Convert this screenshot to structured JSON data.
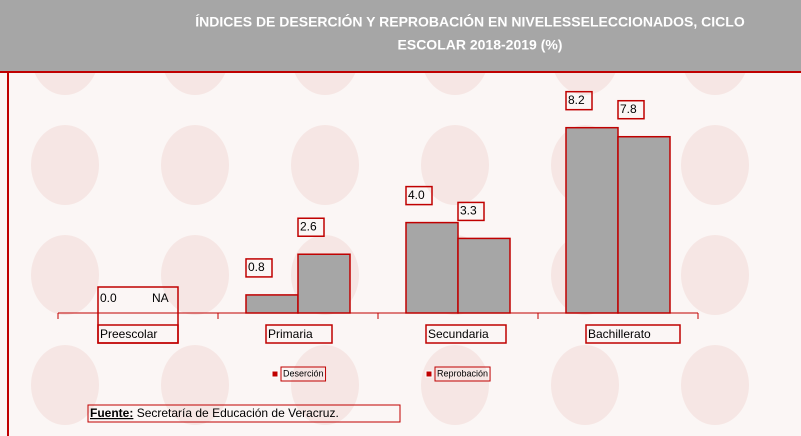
{
  "chart_data": {
    "type": "bar",
    "title": [
      "ÍNDICES DE DESERCIÓN Y REPROBACIÓN EN NIVELESSELECCIONADOS, CICLO",
      "ESCOLAR 2018-2019 (%)"
    ],
    "categories": [
      "Preescolar",
      "Primaria",
      "Secundaria",
      "Bachillerato"
    ],
    "series": [
      {
        "name": "Deserción",
        "color": "#a6a6a6",
        "values": [
          0.0,
          0.8,
          4.0,
          8.2
        ],
        "value_labels": [
          "0.0",
          "0.8",
          "4.0",
          "8.2"
        ]
      },
      {
        "name": "Reprobación",
        "color": "#a6a6a6",
        "values": [
          null,
          2.6,
          3.3,
          7.8
        ],
        "value_labels": [
          "NA",
          "2.6",
          "3.3",
          "7.8"
        ]
      }
    ],
    "ylim": [
      0,
      10
    ],
    "source_label": "Fuente:",
    "source": "Secretaría de Educación de Veracruz."
  }
}
